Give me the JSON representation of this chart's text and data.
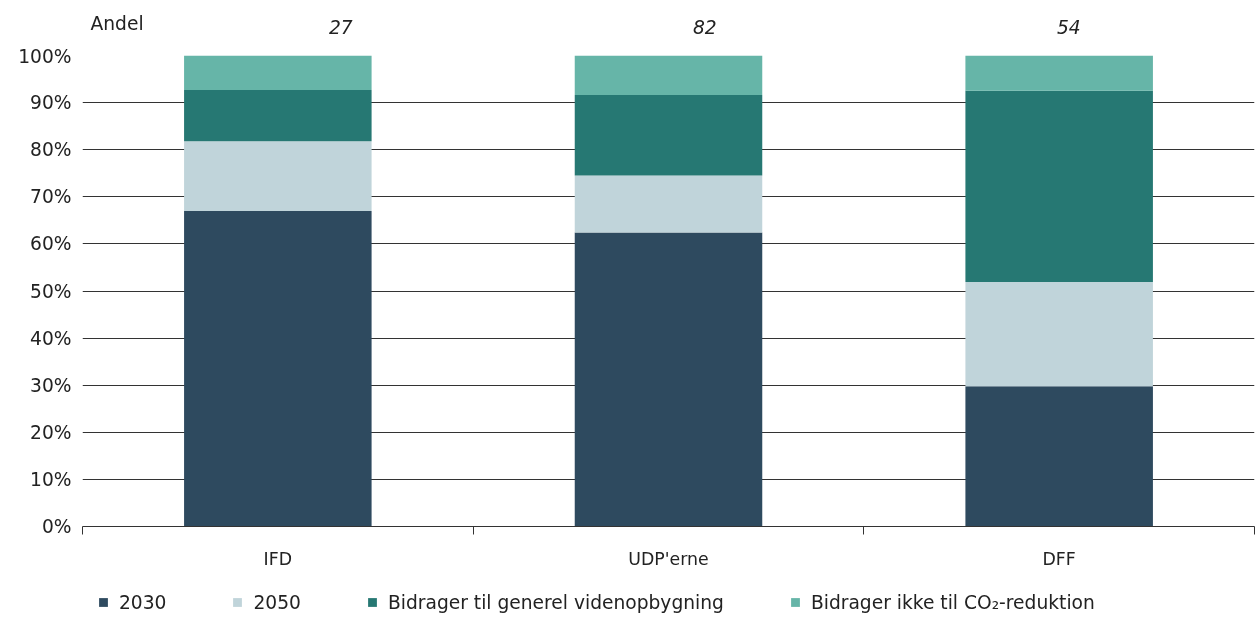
{
  "chart_data": {
    "type": "bar",
    "stacked": true,
    "ylabel": "Andel",
    "categories": [
      "IFD",
      "UDP'erne",
      "DFF"
    ],
    "series": [
      {
        "name": "2030",
        "color": "#2e4a5f",
        "values": [
          67,
          62.4,
          29.8
        ]
      },
      {
        "name": "2050",
        "color": "#c0d4da",
        "values": [
          14.8,
          12.1,
          22.1
        ]
      },
      {
        "name": "Bidrager til generel videnopbygning",
        "color": "#267873",
        "values": [
          10.9,
          17.1,
          40.6
        ]
      },
      {
        "name": "Bidrager ikke til CO₂-reduktion",
        "color": "#66b5a8",
        "values": [
          7.3,
          8.4,
          7.5
        ]
      }
    ],
    "ylim": [
      0,
      100
    ],
    "yticks": [
      {
        "value": 0,
        "label": "0%"
      },
      {
        "value": 10,
        "label": "10%"
      },
      {
        "value": 20,
        "label": "20%"
      },
      {
        "value": 30,
        "label": "30%"
      },
      {
        "value": 40,
        "label": "40%"
      },
      {
        "value": 50,
        "label": "50%"
      },
      {
        "value": 60,
        "label": "60%"
      },
      {
        "value": 70,
        "label": "70%"
      },
      {
        "value": 80,
        "label": "80%"
      },
      {
        "value": 90,
        "label": "90%"
      },
      {
        "value": 100,
        "label": "100%"
      }
    ],
    "grid": "y",
    "legend": "bottom",
    "annotations": [
      "27",
      "82",
      "54"
    ]
  }
}
